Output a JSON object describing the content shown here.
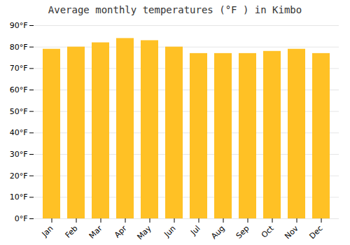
{
  "chart_data": {
    "type": "bar",
    "title": "Average monthly temperatures (°F ) in Kimbo",
    "categories": [
      "Jan",
      "Feb",
      "Mar",
      "Apr",
      "May",
      "Jun",
      "Jul",
      "Aug",
      "Sep",
      "Oct",
      "Nov",
      "Dec"
    ],
    "values": [
      79,
      80,
      82,
      84,
      83,
      80,
      77,
      77,
      77,
      78,
      79,
      77
    ],
    "color": "#FFC125",
    "ylim": [
      0,
      90
    ],
    "yticks": [
      {
        "value": 0,
        "label": "0°F"
      },
      {
        "value": 10,
        "label": "10°F"
      },
      {
        "value": 20,
        "label": "20°F"
      },
      {
        "value": 30,
        "label": "30°F"
      },
      {
        "value": 40,
        "label": "40°F"
      },
      {
        "value": 50,
        "label": "50°F"
      },
      {
        "value": 60,
        "label": "60°F"
      },
      {
        "value": 70,
        "label": "70°F"
      },
      {
        "value": 80,
        "label": "80°F"
      },
      {
        "value": 90,
        "label": "90°F"
      }
    ],
    "grid": true
  }
}
